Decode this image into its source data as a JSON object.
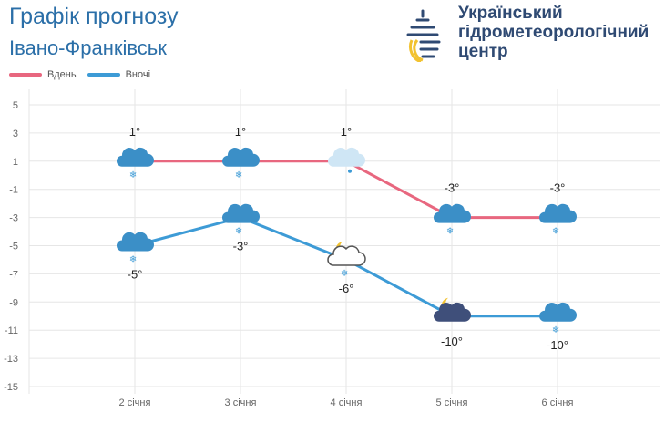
{
  "header": {
    "title": "Графік прогнозу",
    "city": "Івано-Франківськ"
  },
  "org": {
    "line1": "Український",
    "line2": "гідрометеорологічний",
    "line3": "центр"
  },
  "colors": {
    "day": "#e8677f",
    "night": "#3d9bd6",
    "title": "#2b6fa8"
  },
  "chart_data": {
    "type": "line",
    "categories": [
      "2 січня",
      "3 січня",
      "4 січня",
      "5 січня",
      "6 січня"
    ],
    "series": [
      {
        "name": "Вдень",
        "values": [
          1,
          1,
          1,
          -3,
          -3
        ],
        "labels": [
          "1°",
          "1°",
          "1°",
          "-3°",
          "-3°"
        ],
        "icons": [
          "snow-cloud",
          "snow-cloud",
          "sun-cloud-rain",
          "snow-cloud",
          "snow-cloud"
        ]
      },
      {
        "name": "Вночі",
        "values": [
          -5,
          -3,
          -6,
          -10,
          -10
        ],
        "labels": [
          "-5°",
          "-3°",
          "-6°",
          "-10°",
          "-10°"
        ],
        "icons": [
          "snow-cloud",
          "snow-cloud",
          "moon-cloud-snow",
          "moon-cloud",
          "snow-cloud"
        ]
      }
    ],
    "yticks": [
      5,
      3,
      1,
      -1,
      -3,
      -5,
      -7,
      -9,
      -11,
      -13,
      -15
    ],
    "ylim": [
      -15,
      5
    ],
    "grid": true,
    "legend": "top-left"
  }
}
